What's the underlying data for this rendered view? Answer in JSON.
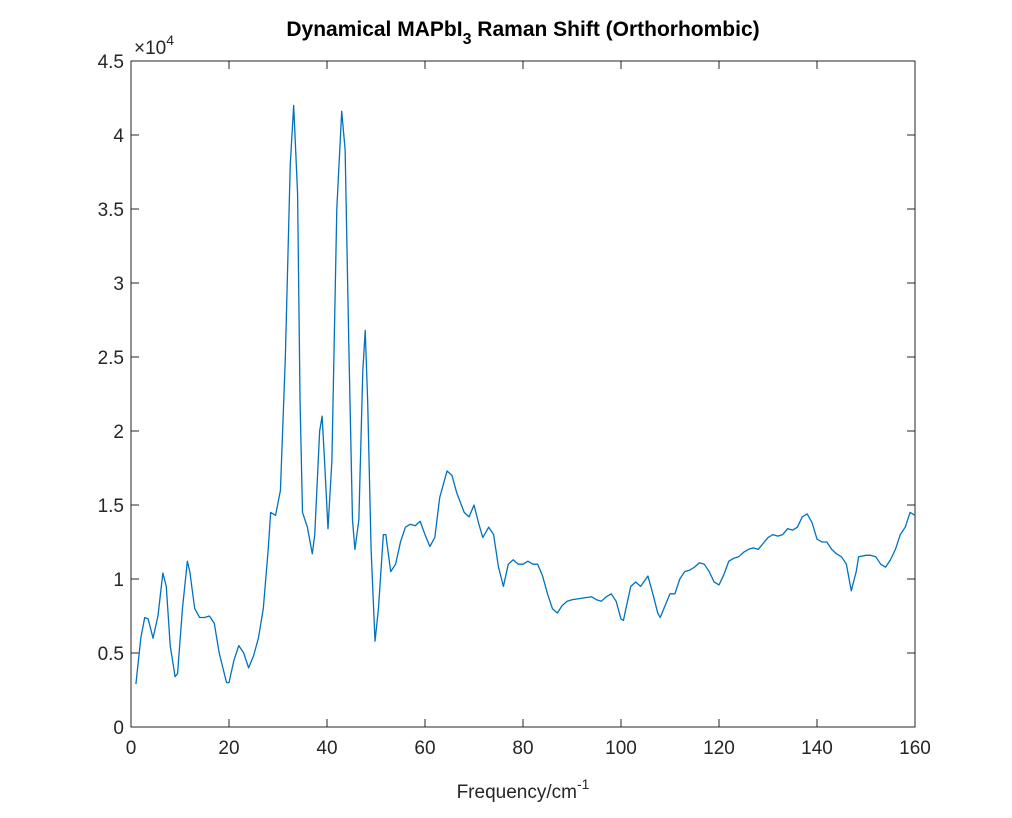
{
  "chart_data": {
    "type": "line",
    "title": [
      "Dynamical MAPbI",
      "3",
      " Raman Shift (Orthorhombic)"
    ],
    "xlabel": [
      "Frequency/cm",
      "-1"
    ],
    "y_exponent": [
      "×10",
      "4"
    ],
    "xlim": [
      0,
      160
    ],
    "xticks": [
      0,
      20,
      40,
      60,
      80,
      100,
      120,
      140,
      160
    ],
    "ylim": [
      0,
      4.5
    ],
    "yticks": [
      0,
      0.5,
      1,
      1.5,
      2,
      2.5,
      3,
      3.5,
      4,
      4.5
    ],
    "grid": false,
    "box": true,
    "x": [
      1,
      2,
      2.8,
      3.5,
      4.5,
      5.5,
      6.5,
      7.2,
      8,
      9,
      9.5,
      10.5,
      11.5,
      12,
      13,
      14,
      15,
      16,
      17,
      18,
      19.5,
      20,
      21,
      22,
      23,
      24,
      25,
      26,
      27,
      28,
      28.5,
      29.5,
      30.5,
      31.5,
      32.5,
      33.2,
      34,
      34.5,
      35,
      36,
      37,
      37.5,
      38.5,
      39,
      39.5,
      40.2,
      41,
      42,
      43,
      43.7,
      44.5,
      45.2,
      45.7,
      46.5,
      47.3,
      47.8,
      48.3,
      49,
      49.8,
      50.5,
      51.5,
      52,
      53,
      54,
      55,
      56,
      57,
      58,
      59,
      60,
      61,
      62,
      63,
      64.5,
      65.5,
      66.5,
      68,
      69,
      70,
      71,
      71.8,
      73,
      74,
      75,
      76,
      77,
      78,
      79,
      80,
      81,
      82,
      83,
      84,
      85,
      86,
      87,
      88,
      89,
      90,
      92,
      94,
      95,
      96,
      97,
      98,
      99,
      100,
      100.5,
      101,
      102,
      103,
      104,
      105.5,
      106.5,
      107.5,
      108,
      109,
      110,
      111,
      112,
      113,
      114,
      115,
      116,
      117,
      118,
      119,
      120,
      121,
      122,
      123,
      124,
      125,
      126,
      127,
      128,
      129,
      130,
      131,
      132,
      133,
      134,
      135,
      136,
      137,
      138,
      139,
      140,
      141,
      142,
      143,
      144,
      145,
      146,
      147,
      148,
      148.5,
      150,
      151,
      152,
      153,
      154,
      155,
      156,
      157,
      158,
      159,
      160
    ],
    "series": [
      {
        "color": "#0072bd",
        "values": [
          0.29,
          0.6,
          0.74,
          0.73,
          0.6,
          0.75,
          1.04,
          0.95,
          0.55,
          0.34,
          0.36,
          0.8,
          1.12,
          1.05,
          0.8,
          0.74,
          0.74,
          0.75,
          0.7,
          0.5,
          0.3,
          0.3,
          0.45,
          0.55,
          0.5,
          0.4,
          0.48,
          0.6,
          0.8,
          1.2,
          1.45,
          1.43,
          1.6,
          2.5,
          3.8,
          4.2,
          3.6,
          2.2,
          1.45,
          1.35,
          1.17,
          1.3,
          2.0,
          2.1,
          1.8,
          1.34,
          1.8,
          3.5,
          4.16,
          3.9,
          2.5,
          1.4,
          1.2,
          1.4,
          2.4,
          2.68,
          2.2,
          1.2,
          0.58,
          0.8,
          1.3,
          1.3,
          1.05,
          1.1,
          1.25,
          1.35,
          1.37,
          1.36,
          1.39,
          1.3,
          1.22,
          1.28,
          1.55,
          1.73,
          1.7,
          1.58,
          1.45,
          1.42,
          1.5,
          1.37,
          1.28,
          1.35,
          1.3,
          1.08,
          0.95,
          1.1,
          1.13,
          1.1,
          1.1,
          1.12,
          1.1,
          1.1,
          1.02,
          0.9,
          0.8,
          0.77,
          0.82,
          0.85,
          0.86,
          0.87,
          0.88,
          0.86,
          0.85,
          0.88,
          0.9,
          0.85,
          0.73,
          0.72,
          0.8,
          0.95,
          0.98,
          0.95,
          1.02,
          0.9,
          0.77,
          0.74,
          0.82,
          0.9,
          0.9,
          1.0,
          1.05,
          1.06,
          1.08,
          1.11,
          1.1,
          1.05,
          0.98,
          0.96,
          1.03,
          1.12,
          1.14,
          1.15,
          1.18,
          1.2,
          1.21,
          1.2,
          1.24,
          1.28,
          1.3,
          1.29,
          1.3,
          1.34,
          1.33,
          1.35,
          1.42,
          1.44,
          1.38,
          1.27,
          1.25,
          1.25,
          1.2,
          1.17,
          1.15,
          1.1,
          0.92,
          1.05,
          1.15,
          1.16,
          1.16,
          1.15,
          1.1,
          1.08,
          1.13,
          1.2,
          1.3,
          1.35,
          1.45,
          1.43
        ]
      }
    ]
  }
}
